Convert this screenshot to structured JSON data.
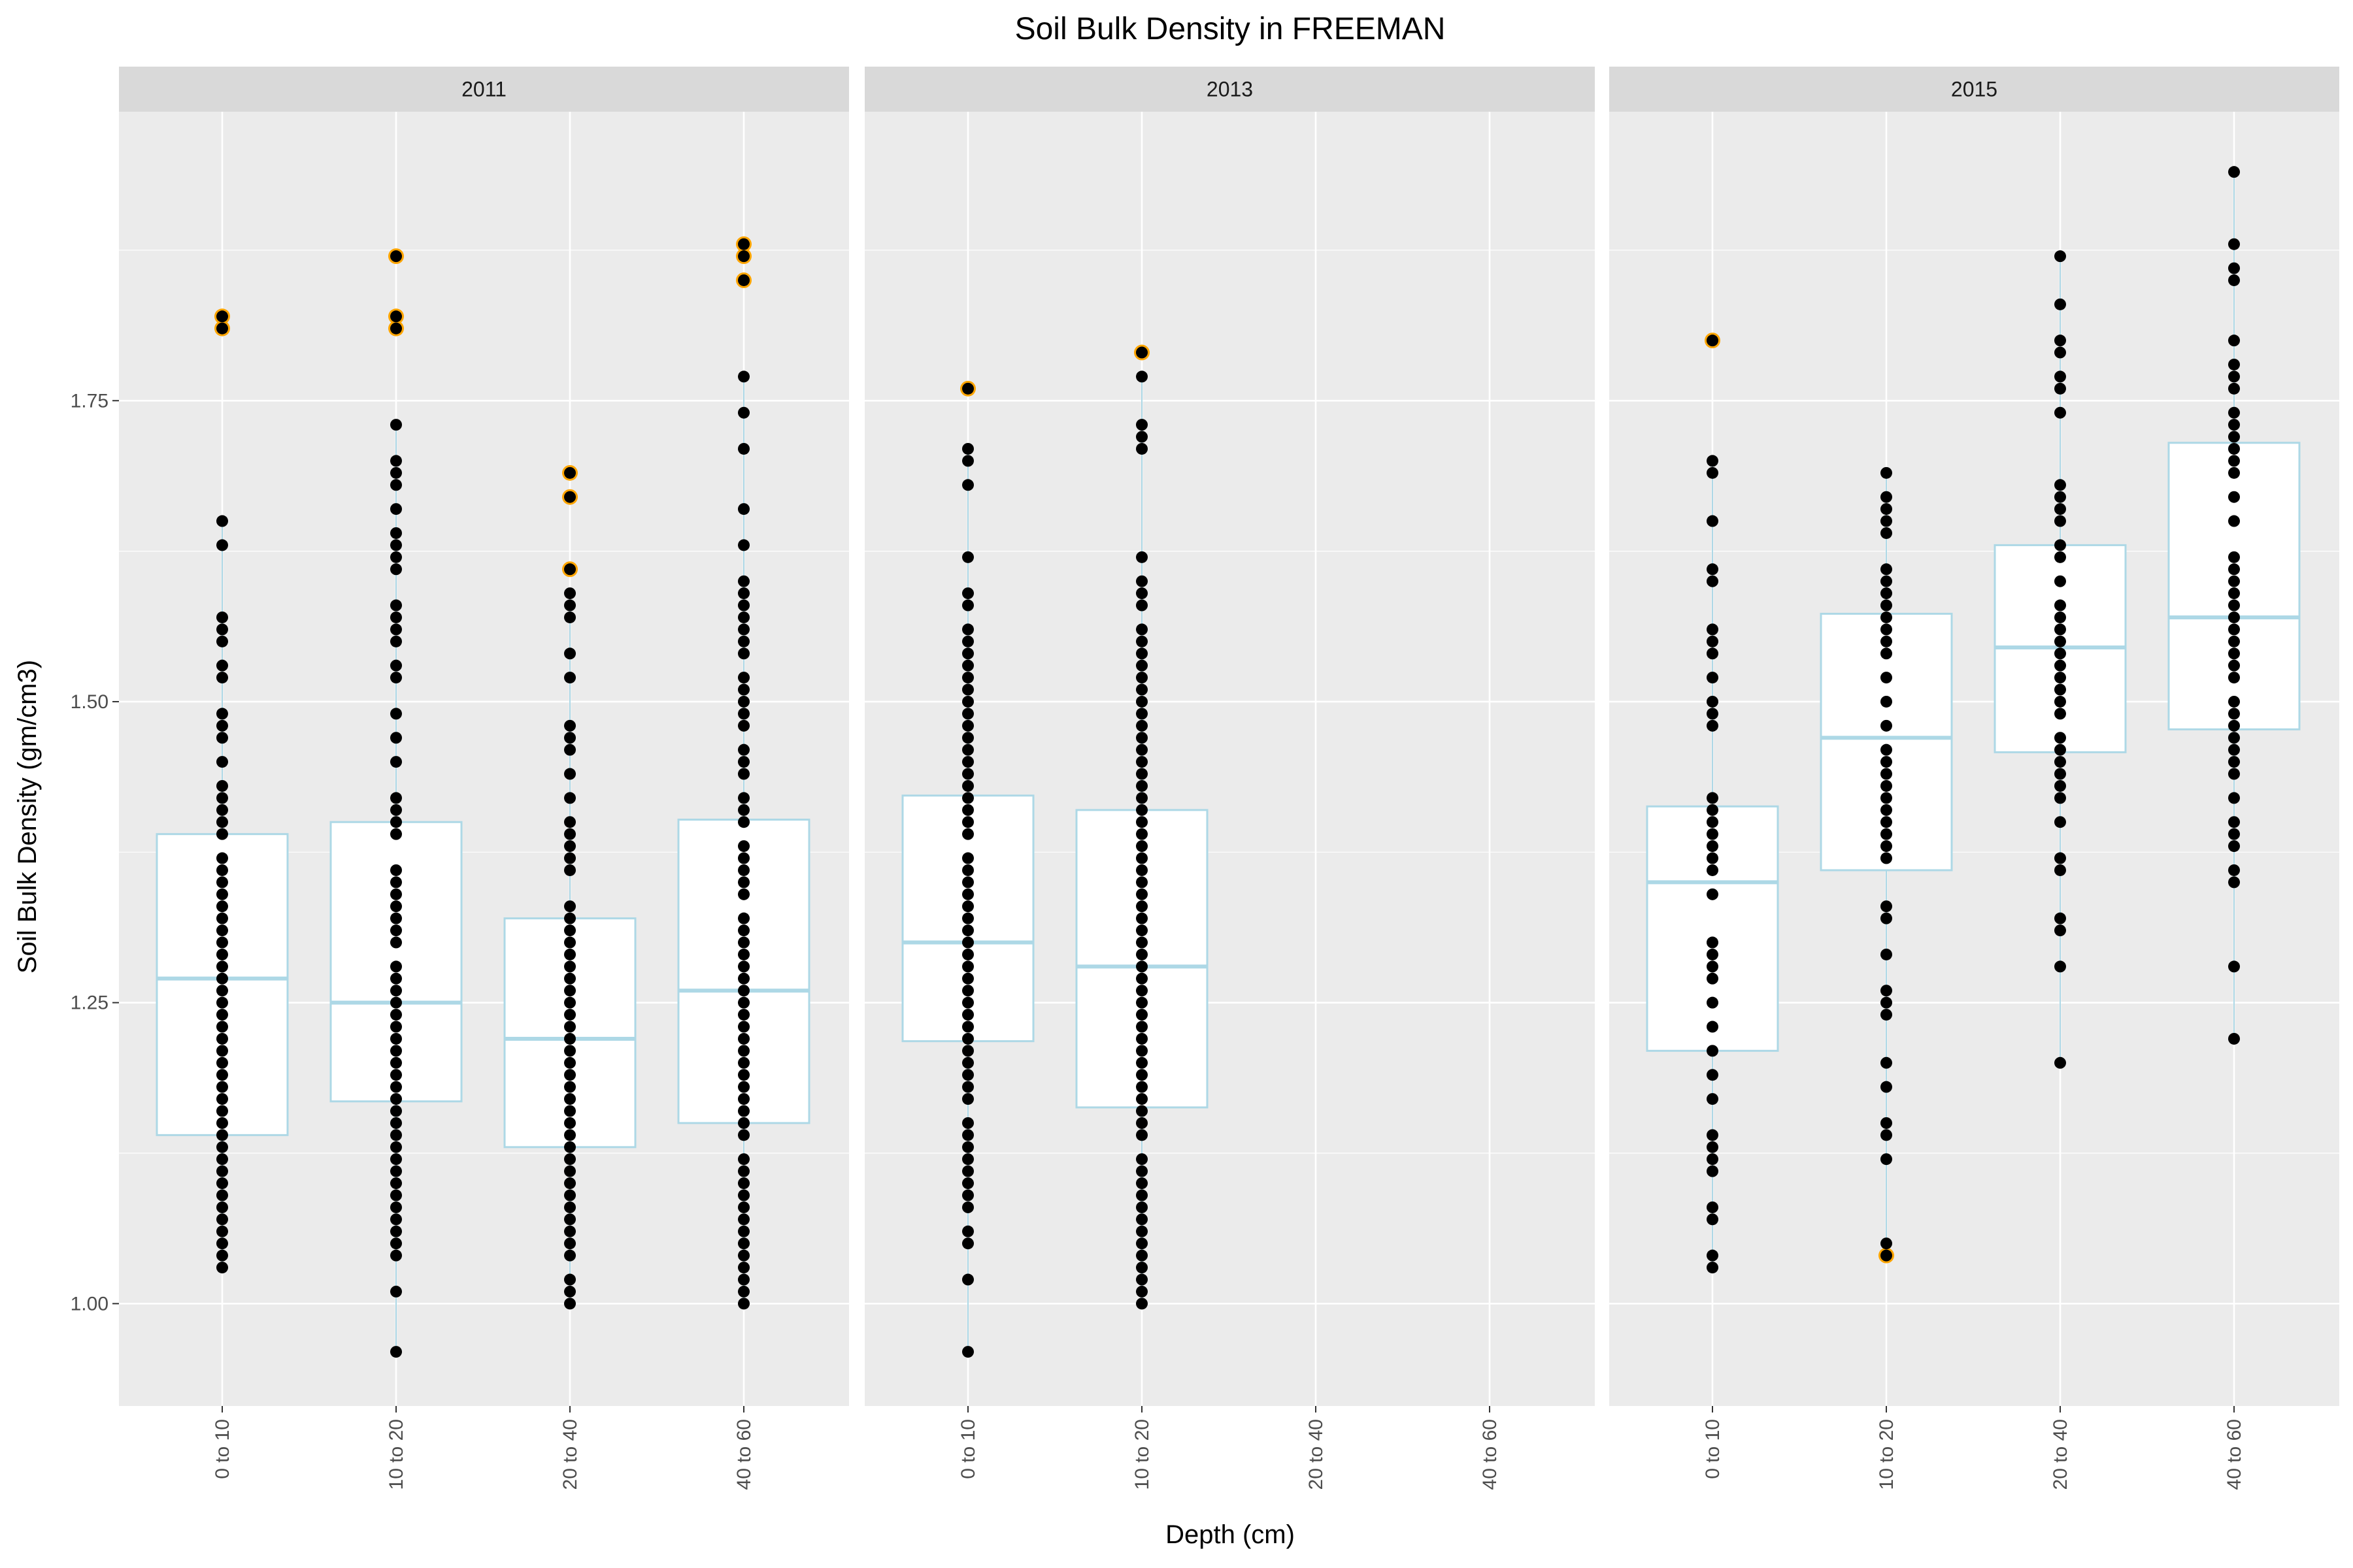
{
  "chart_data": {
    "type": "box",
    "title": "Soil Bulk Density in FREEMAN",
    "xlabel": "Depth (cm)",
    "ylabel": "Soil Bulk Density (gm/cm3)",
    "categories": [
      "0 to 10",
      "10 to 20",
      "20 to 40",
      "40 to 60"
    ],
    "ylim": [
      0.915,
      1.99
    ],
    "yticks": [
      1.0,
      1.25,
      1.5,
      1.75
    ],
    "ytick_labels": [
      "1.00",
      "1.25",
      "1.50",
      "1.75"
    ],
    "grid": true,
    "colors": {
      "panel_bg": "#ebebeb",
      "strip_bg": "#d9d9d9",
      "grid": "#ffffff",
      "box_line": "#add8e6",
      "box_fill": "#ffffff",
      "point": "#000000",
      "outlier_ring": "#ffa500"
    },
    "panels": [
      {
        "label": "2011",
        "boxes": [
          {
            "category": "0 to 10",
            "lower_whisker": 1.03,
            "q1": 1.14,
            "median": 1.27,
            "q3": 1.39,
            "upper_whisker": 1.65
          },
          {
            "category": "10 to 20",
            "lower_whisker": 0.96,
            "q1": 1.168,
            "median": 1.25,
            "q3": 1.4,
            "upper_whisker": 1.73
          },
          {
            "category": "20 to 40",
            "lower_whisker": 1.0,
            "q1": 1.13,
            "median": 1.22,
            "q3": 1.32,
            "upper_whisker": 1.59
          },
          {
            "category": "40 to 60",
            "lower_whisker": 1.0,
            "q1": 1.15,
            "median": 1.26,
            "q3": 1.402,
            "upper_whisker": 1.77
          }
        ],
        "points": [
          {
            "category": "0 to 10",
            "values": [
              1.03,
              1.04,
              1.05,
              1.06,
              1.07,
              1.08,
              1.09,
              1.1,
              1.11,
              1.12,
              1.13,
              1.14,
              1.15,
              1.16,
              1.17,
              1.18,
              1.19,
              1.2,
              1.21,
              1.22,
              1.23,
              1.24,
              1.25,
              1.26,
              1.27,
              1.28,
              1.29,
              1.3,
              1.31,
              1.32,
              1.33,
              1.34,
              1.35,
              1.36,
              1.37,
              1.39,
              1.4,
              1.41,
              1.42,
              1.43,
              1.45,
              1.47,
              1.48,
              1.49,
              1.52,
              1.53,
              1.55,
              1.56,
              1.57,
              1.63,
              1.65
            ]
          },
          {
            "category": "10 to 20",
            "values": [
              0.96,
              1.01,
              1.04,
              1.05,
              1.06,
              1.07,
              1.08,
              1.09,
              1.1,
              1.11,
              1.12,
              1.13,
              1.14,
              1.15,
              1.16,
              1.17,
              1.18,
              1.19,
              1.2,
              1.21,
              1.22,
              1.23,
              1.24,
              1.25,
              1.26,
              1.27,
              1.28,
              1.3,
              1.31,
              1.32,
              1.33,
              1.34,
              1.35,
              1.36,
              1.39,
              1.4,
              1.41,
              1.42,
              1.45,
              1.47,
              1.49,
              1.52,
              1.53,
              1.55,
              1.56,
              1.57,
              1.58,
              1.61,
              1.62,
              1.63,
              1.64,
              1.66,
              1.68,
              1.69,
              1.7,
              1.73
            ]
          },
          {
            "category": "20 to 40",
            "values": [
              1.0,
              1.01,
              1.02,
              1.04,
              1.05,
              1.06,
              1.07,
              1.08,
              1.09,
              1.1,
              1.11,
              1.12,
              1.13,
              1.14,
              1.15,
              1.16,
              1.17,
              1.18,
              1.19,
              1.2,
              1.21,
              1.22,
              1.23,
              1.24,
              1.25,
              1.26,
              1.27,
              1.28,
              1.29,
              1.3,
              1.31,
              1.32,
              1.33,
              1.36,
              1.37,
              1.38,
              1.39,
              1.4,
              1.42,
              1.44,
              1.46,
              1.47,
              1.48,
              1.52,
              1.54,
              1.57,
              1.58,
              1.59
            ]
          },
          {
            "category": "40 to 60",
            "values": [
              1.0,
              1.01,
              1.02,
              1.03,
              1.04,
              1.05,
              1.06,
              1.07,
              1.08,
              1.09,
              1.1,
              1.11,
              1.12,
              1.14,
              1.15,
              1.16,
              1.17,
              1.18,
              1.19,
              1.2,
              1.21,
              1.22,
              1.23,
              1.24,
              1.25,
              1.26,
              1.27,
              1.28,
              1.29,
              1.3,
              1.31,
              1.32,
              1.34,
              1.35,
              1.36,
              1.37,
              1.38,
              1.4,
              1.41,
              1.42,
              1.44,
              1.45,
              1.46,
              1.48,
              1.49,
              1.5,
              1.51,
              1.52,
              1.54,
              1.55,
              1.56,
              1.57,
              1.58,
              1.59,
              1.6,
              1.63,
              1.66,
              1.71,
              1.74,
              1.77
            ]
          }
        ],
        "outliers": [
          {
            "category": "0 to 10",
            "values": [
              1.81,
              1.82
            ]
          },
          {
            "category": "10 to 20",
            "values": [
              1.81,
              1.82,
              1.87
            ]
          },
          {
            "category": "20 to 40",
            "values": [
              1.61,
              1.67,
              1.69
            ]
          },
          {
            "category": "40 to 60",
            "values": [
              1.85,
              1.87,
              1.88
            ]
          }
        ]
      },
      {
        "label": "2013",
        "boxes": [
          {
            "category": "0 to 10",
            "lower_whisker": 0.96,
            "q1": 1.218,
            "median": 1.3,
            "q3": 1.422,
            "upper_whisker": 1.71
          },
          {
            "category": "10 to 20",
            "lower_whisker": 1.0,
            "q1": 1.163,
            "median": 1.28,
            "q3": 1.41,
            "upper_whisker": 1.77
          }
        ],
        "points": [
          {
            "category": "0 to 10",
            "values": [
              0.96,
              1.02,
              1.05,
              1.06,
              1.08,
              1.09,
              1.1,
              1.11,
              1.12,
              1.13,
              1.14,
              1.15,
              1.17,
              1.18,
              1.19,
              1.2,
              1.21,
              1.22,
              1.23,
              1.24,
              1.25,
              1.26,
              1.27,
              1.28,
              1.29,
              1.3,
              1.31,
              1.32,
              1.33,
              1.34,
              1.35,
              1.36,
              1.37,
              1.39,
              1.4,
              1.41,
              1.42,
              1.43,
              1.44,
              1.45,
              1.46,
              1.47,
              1.48,
              1.49,
              1.5,
              1.51,
              1.52,
              1.53,
              1.54,
              1.55,
              1.56,
              1.58,
              1.59,
              1.62,
              1.68,
              1.7,
              1.71
            ]
          },
          {
            "category": "10 to 20",
            "values": [
              1.0,
              1.01,
              1.02,
              1.03,
              1.04,
              1.05,
              1.06,
              1.07,
              1.08,
              1.09,
              1.1,
              1.11,
              1.12,
              1.14,
              1.15,
              1.16,
              1.17,
              1.18,
              1.19,
              1.2,
              1.21,
              1.22,
              1.23,
              1.24,
              1.25,
              1.26,
              1.27,
              1.28,
              1.29,
              1.3,
              1.31,
              1.32,
              1.33,
              1.34,
              1.35,
              1.36,
              1.37,
              1.38,
              1.39,
              1.4,
              1.41,
              1.42,
              1.43,
              1.44,
              1.45,
              1.46,
              1.47,
              1.48,
              1.49,
              1.5,
              1.51,
              1.52,
              1.53,
              1.54,
              1.55,
              1.56,
              1.58,
              1.59,
              1.6,
              1.62,
              1.71,
              1.72,
              1.73,
              1.77
            ]
          }
        ],
        "outliers": [
          {
            "category": "0 to 10",
            "values": [
              1.76
            ]
          },
          {
            "category": "10 to 20",
            "values": [
              1.79
            ]
          }
        ]
      },
      {
        "label": "2015",
        "boxes": [
          {
            "category": "0 to 10",
            "lower_whisker": 1.03,
            "q1": 1.21,
            "median": 1.35,
            "q3": 1.413,
            "upper_whisker": 1.7
          },
          {
            "category": "10 to 20",
            "lower_whisker": 1.05,
            "q1": 1.36,
            "median": 1.47,
            "q3": 1.573,
            "upper_whisker": 1.69
          },
          {
            "category": "20 to 40",
            "lower_whisker": 1.2,
            "q1": 1.458,
            "median": 1.545,
            "q3": 1.63,
            "upper_whisker": 1.87
          },
          {
            "category": "40 to 60",
            "lower_whisker": 1.22,
            "q1": 1.477,
            "median": 1.57,
            "q3": 1.715,
            "upper_whisker": 1.94
          }
        ],
        "points": [
          {
            "category": "0 to 10",
            "values": [
              1.03,
              1.04,
              1.07,
              1.08,
              1.11,
              1.12,
              1.13,
              1.14,
              1.17,
              1.19,
              1.21,
              1.23,
              1.25,
              1.27,
              1.28,
              1.29,
              1.3,
              1.34,
              1.36,
              1.37,
              1.38,
              1.39,
              1.4,
              1.41,
              1.42,
              1.48,
              1.49,
              1.5,
              1.52,
              1.54,
              1.55,
              1.56,
              1.6,
              1.61,
              1.65,
              1.69,
              1.7
            ]
          },
          {
            "category": "10 to 20",
            "values": [
              1.05,
              1.12,
              1.14,
              1.15,
              1.18,
              1.2,
              1.24,
              1.25,
              1.26,
              1.29,
              1.32,
              1.33,
              1.37,
              1.38,
              1.39,
              1.4,
              1.41,
              1.42,
              1.43,
              1.44,
              1.45,
              1.46,
              1.48,
              1.5,
              1.52,
              1.54,
              1.55,
              1.56,
              1.57,
              1.58,
              1.59,
              1.6,
              1.61,
              1.64,
              1.65,
              1.66,
              1.67,
              1.69
            ]
          },
          {
            "category": "20 to 40",
            "values": [
              1.2,
              1.28,
              1.31,
              1.32,
              1.36,
              1.37,
              1.4,
              1.42,
              1.43,
              1.44,
              1.45,
              1.46,
              1.47,
              1.49,
              1.5,
              1.51,
              1.52,
              1.53,
              1.54,
              1.55,
              1.56,
              1.57,
              1.58,
              1.6,
              1.62,
              1.63,
              1.65,
              1.66,
              1.67,
              1.68,
              1.74,
              1.76,
              1.77,
              1.79,
              1.8,
              1.83,
              1.87
            ]
          },
          {
            "category": "40 to 60",
            "values": [
              1.22,
              1.28,
              1.35,
              1.36,
              1.38,
              1.39,
              1.4,
              1.42,
              1.44,
              1.45,
              1.46,
              1.47,
              1.48,
              1.49,
              1.5,
              1.52,
              1.53,
              1.54,
              1.55,
              1.56,
              1.57,
              1.58,
              1.59,
              1.6,
              1.61,
              1.62,
              1.65,
              1.67,
              1.69,
              1.7,
              1.71,
              1.72,
              1.73,
              1.74,
              1.76,
              1.77,
              1.78,
              1.8,
              1.85,
              1.86,
              1.88,
              1.94
            ]
          }
        ],
        "outliers": [
          {
            "category": "0 to 10",
            "values": [
              1.8
            ]
          },
          {
            "category": "10 to 20",
            "values": [
              1.04
            ]
          }
        ]
      }
    ]
  }
}
